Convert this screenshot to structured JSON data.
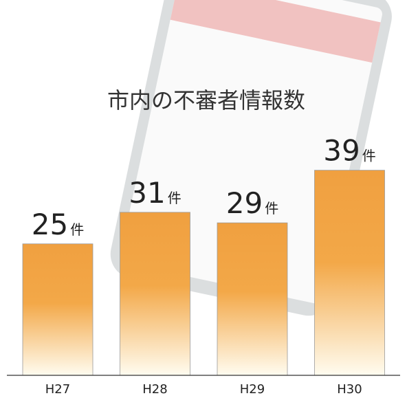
{
  "chart_data": {
    "type": "bar",
    "title": "市内の不審者情報数",
    "categories": [
      "H27",
      "H28",
      "H29",
      "H30"
    ],
    "values": [
      25,
      31,
      29,
      39
    ],
    "value_labels": [
      "25件",
      "31件",
      "29件",
      "39件"
    ],
    "color": "#f0a040"
  }
}
